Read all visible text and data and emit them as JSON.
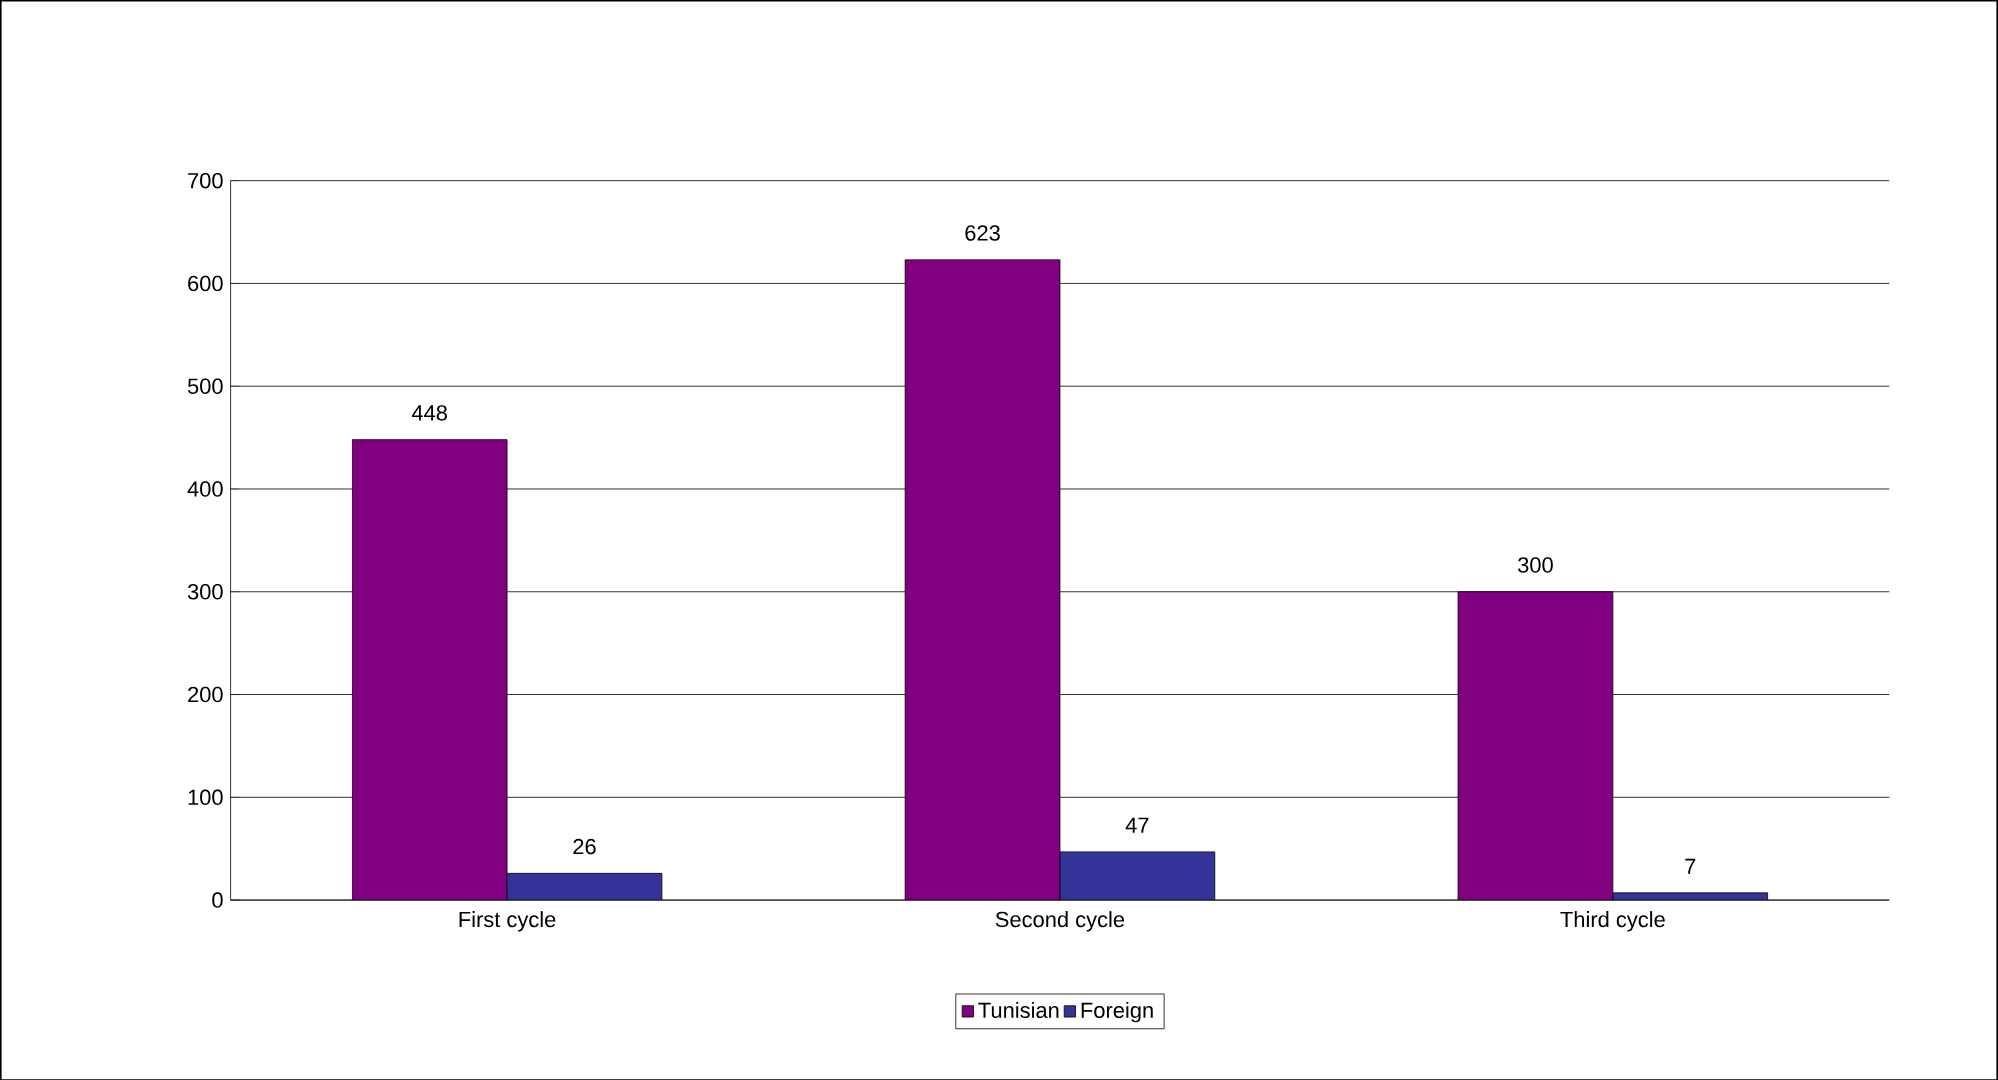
{
  "chart_data": {
    "type": "bar",
    "categories": [
      "First cycle",
      "Second cycle",
      "Third cycle"
    ],
    "series": [
      {
        "name": "Tunisian",
        "color": "#800080",
        "values": [
          448,
          623,
          300
        ]
      },
      {
        "name": "Foreign",
        "color": "#333399",
        "values": [
          26,
          47,
          7
        ]
      }
    ],
    "ylim": [
      0,
      700
    ],
    "yticks": [
      0,
      100,
      200,
      300,
      400,
      500,
      600,
      700
    ],
    "grid": "y",
    "legend": "bottom",
    "data_labels": true
  }
}
